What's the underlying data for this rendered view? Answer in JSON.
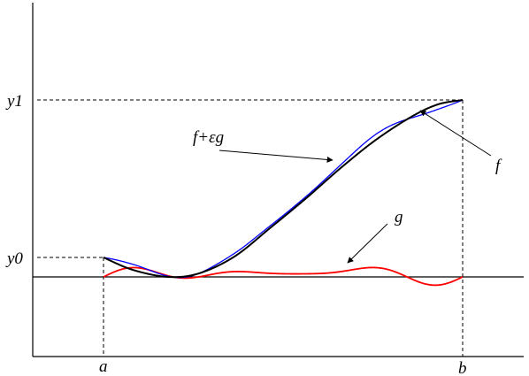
{
  "labels": {
    "y1": "y1",
    "y0": "y0",
    "a": "a",
    "b": "b",
    "f": "f",
    "g": "g",
    "f_plus_eps_g": "f+εg"
  },
  "colors": {
    "f_curve": "#000000",
    "variation_curve": "#0000ff",
    "g_curve": "#ff0000",
    "axes": "#000000"
  }
}
